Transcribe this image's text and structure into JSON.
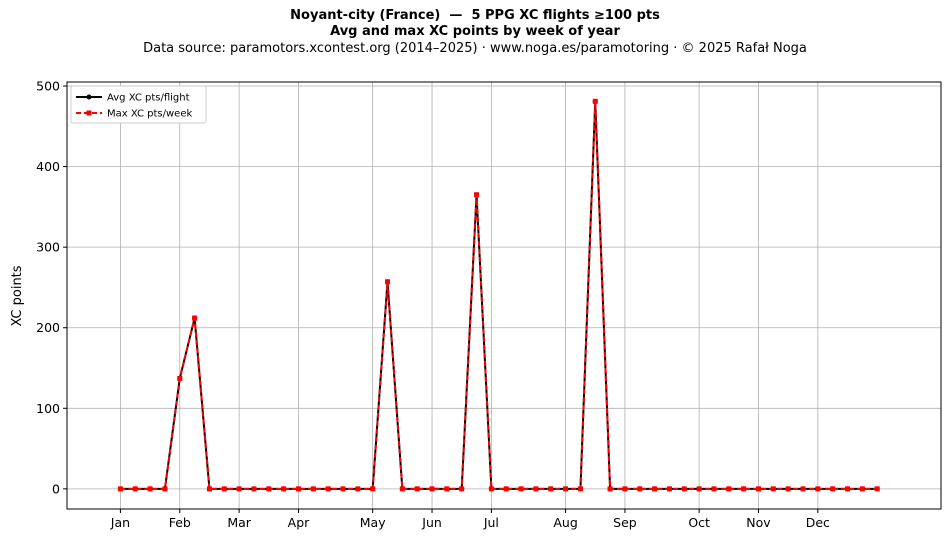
{
  "chart_data": {
    "type": "line",
    "title": "Noyant-city (France)  —  5 PPG XC flights ≥100 pts",
    "subtitle": "Avg and max XC points by week of year",
    "source_line": "Data source: paramotors.xcontest.org (2014–2025)  ·  www.noga.es/paramotoring  ·  © 2025 Rafał Noga",
    "xlabel": "",
    "ylabel": "XC points",
    "xlim": [
      -2.6,
      56.3
    ],
    "ylim": [
      -25,
      505
    ],
    "grid": true,
    "legend_position": "top-left",
    "month_ticks": [
      {
        "label": "Jan",
        "week": 1
      },
      {
        "label": "Feb",
        "week": 5
      },
      {
        "label": "Mar",
        "week": 9
      },
      {
        "label": "Apr",
        "week": 13
      },
      {
        "label": "May",
        "week": 18
      },
      {
        "label": "Jun",
        "week": 22
      },
      {
        "label": "Jul",
        "week": 26
      },
      {
        "label": "Aug",
        "week": 31
      },
      {
        "label": "Sep",
        "week": 35
      },
      {
        "label": "Oct",
        "week": 40
      },
      {
        "label": "Nov",
        "week": 44
      },
      {
        "label": "Dec",
        "week": 48
      }
    ],
    "y_ticks": [
      0,
      100,
      200,
      300,
      400,
      500
    ],
    "x": [
      1,
      2,
      3,
      4,
      5,
      6,
      7,
      8,
      9,
      10,
      11,
      12,
      13,
      14,
      15,
      16,
      17,
      18,
      19,
      20,
      21,
      22,
      23,
      24,
      25,
      26,
      27,
      28,
      29,
      30,
      31,
      32,
      33,
      34,
      35,
      36,
      37,
      38,
      39,
      40,
      41,
      42,
      43,
      44,
      45,
      46,
      47,
      48,
      49,
      50,
      51,
      52
    ],
    "series": [
      {
        "name": "Avg XC pts/flight",
        "color": "#000000",
        "style": "solid",
        "marker": "circle",
        "values": [
          0,
          0,
          0,
          0,
          137,
          212,
          0,
          0,
          0,
          0,
          0,
          0,
          0,
          0,
          0,
          0,
          0,
          0,
          257,
          0,
          0,
          0,
          0,
          0,
          365,
          0,
          0,
          0,
          0,
          0,
          0,
          0,
          481,
          0,
          0,
          0,
          0,
          0,
          0,
          0,
          0,
          0,
          0,
          0,
          0,
          0,
          0,
          0,
          0,
          0,
          0,
          0
        ]
      },
      {
        "name": "Max XC pts/week",
        "color": "#ff0000",
        "style": "dashed",
        "marker": "square",
        "values": [
          0,
          0,
          0,
          0,
          137,
          212,
          0,
          0,
          0,
          0,
          0,
          0,
          0,
          0,
          0,
          0,
          0,
          0,
          257,
          0,
          0,
          0,
          0,
          0,
          365,
          0,
          0,
          0,
          0,
          0,
          0,
          0,
          481,
          0,
          0,
          0,
          0,
          0,
          0,
          0,
          0,
          0,
          0,
          0,
          0,
          0,
          0,
          0,
          0,
          0,
          0,
          0
        ]
      }
    ]
  }
}
